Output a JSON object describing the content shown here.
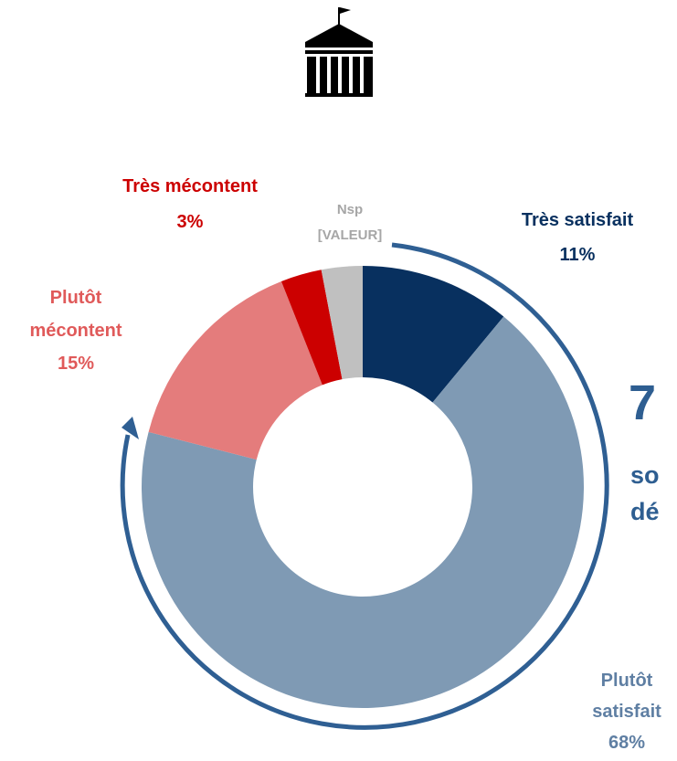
{
  "chart_data": {
    "type": "donut",
    "categories": [
      "Très satisfait",
      "Plutôt satisfait",
      "Plutôt mécontent",
      "Très mécontent",
      "Nsp"
    ],
    "values": [
      11,
      68,
      15,
      3,
      3
    ],
    "value_labels": [
      "11%",
      "68%",
      "15%",
      "3%",
      "[VALEUR]"
    ],
    "colors": [
      "#08305f",
      "#7f9ab4",
      "#e47c7c",
      "#cc0000",
      "#c0c0c0"
    ],
    "label_colors": [
      "#08305f",
      "#5f7fa3",
      "#e05a5a",
      "#cc0000",
      "#a6a6a6"
    ],
    "annotations": [
      "7",
      "so",
      "dé"
    ]
  }
}
